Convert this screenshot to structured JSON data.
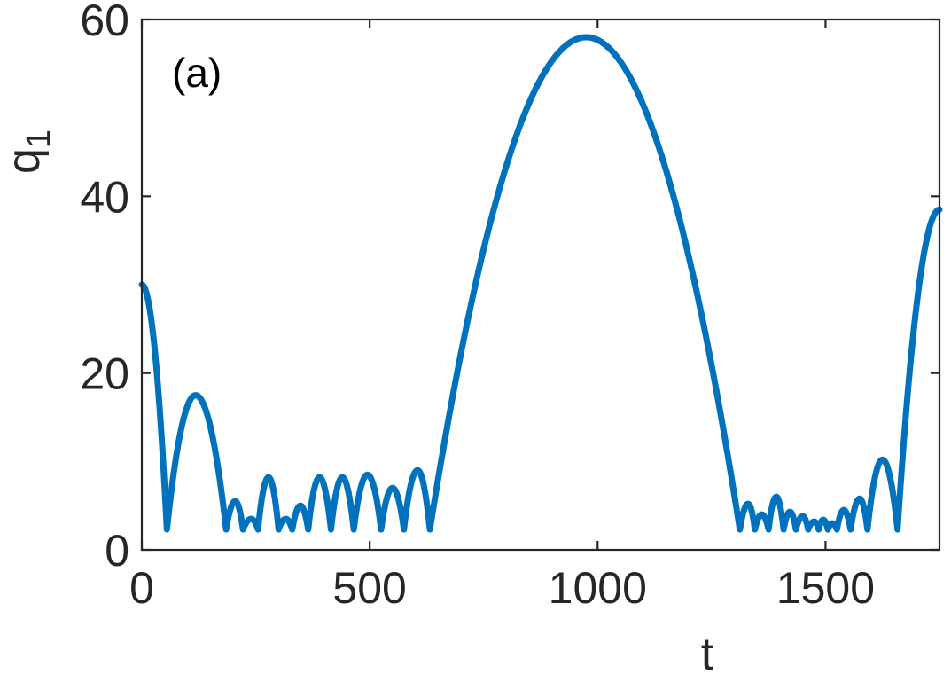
{
  "chart_data": {
    "type": "line",
    "title": "",
    "annotation": "(a)",
    "xlabel": "t",
    "ylabel": "q",
    "ylabel_subscript": "1",
    "xlim": [
      0,
      1750
    ],
    "ylim": [
      0,
      60
    ],
    "xticks": [
      0,
      500,
      1000,
      1500
    ],
    "yticks": [
      0,
      20,
      40,
      60
    ],
    "xtick_labels": [
      "0",
      "500",
      "1000",
      "1500"
    ],
    "ytick_labels": [
      "0",
      "20",
      "40",
      "60"
    ],
    "grid": false,
    "legend": "none",
    "line_color": "#0072BD",
    "series": [
      {
        "anchors": [
          [
            0,
            30
          ],
          [
            55,
            2.3
          ],
          [
            118,
            17.5
          ],
          [
            185,
            2.3
          ],
          [
            205,
            5.5
          ],
          [
            222,
            2.3
          ],
          [
            240,
            3.5
          ],
          [
            255,
            2.3
          ],
          [
            278,
            8.2
          ],
          [
            300,
            2.3
          ],
          [
            316,
            3.5
          ],
          [
            330,
            2.3
          ],
          [
            348,
            5
          ],
          [
            365,
            2.3
          ],
          [
            390,
            8.2
          ],
          [
            415,
            2.3
          ],
          [
            440,
            8.2
          ],
          [
            465,
            2.3
          ],
          [
            495,
            8.5
          ],
          [
            525,
            2.3
          ],
          [
            550,
            7
          ],
          [
            575,
            2.3
          ],
          [
            605,
            9
          ],
          [
            632,
            2.3
          ],
          [
            975,
            58
          ],
          [
            1312,
            2.3
          ],
          [
            1330,
            5.2
          ],
          [
            1345,
            2.3
          ],
          [
            1360,
            4
          ],
          [
            1375,
            2.3
          ],
          [
            1392,
            6
          ],
          [
            1408,
            2.3
          ],
          [
            1422,
            4.3
          ],
          [
            1435,
            2.3
          ],
          [
            1450,
            3.8
          ],
          [
            1462,
            2.3
          ],
          [
            1475,
            3.2
          ],
          [
            1485,
            2.3
          ],
          [
            1495,
            3.4
          ],
          [
            1505,
            2.3
          ],
          [
            1515,
            3
          ],
          [
            1525,
            2.3
          ],
          [
            1540,
            4.5
          ],
          [
            1555,
            2.3
          ],
          [
            1575,
            5.8
          ],
          [
            1592,
            2.3
          ],
          [
            1625,
            10.2
          ],
          [
            1658,
            2.3
          ],
          [
            1750,
            38.5
          ]
        ]
      }
    ]
  }
}
